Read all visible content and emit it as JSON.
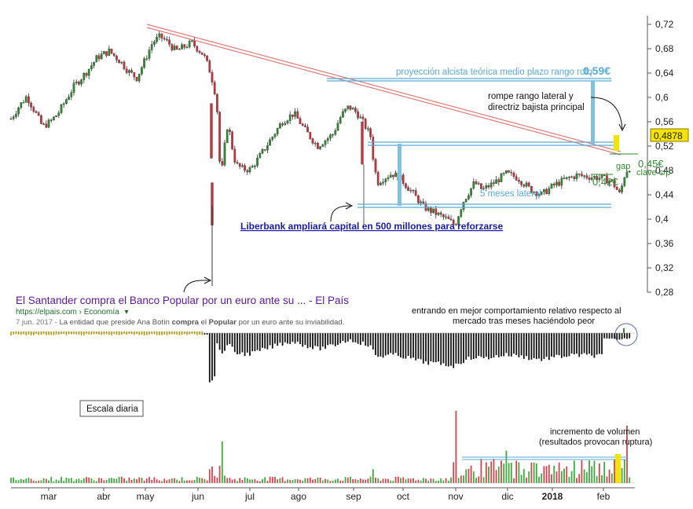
{
  "chart_data": {
    "type": "candlestick",
    "title": "",
    "price_axis": {
      "ylim": [
        0.28,
        0.72
      ],
      "ticks": [
        "0,72",
        "0,68",
        "0,64",
        "0,6",
        "0,56",
        "0,52",
        "0,48",
        "0,44",
        "0,4",
        "0,36",
        "0,32",
        "0,28"
      ],
      "last_price_label": "0,4878"
    },
    "months": [
      "mar",
      "abr",
      "may",
      "jun",
      "jul",
      "ago",
      "sep",
      "oct",
      "nov",
      "dic",
      "2018",
      "feb"
    ],
    "close_series": [
      [
        0,
        0.565
      ],
      [
        10,
        0.585
      ],
      [
        20,
        0.602
      ],
      [
        30,
        0.578
      ],
      [
        40,
        0.552
      ],
      [
        50,
        0.56
      ],
      [
        60,
        0.574
      ],
      [
        70,
        0.596
      ],
      [
        80,
        0.618
      ],
      [
        95,
        0.64
      ],
      [
        110,
        0.666
      ],
      [
        125,
        0.676
      ],
      [
        140,
        0.658
      ],
      [
        150,
        0.642
      ],
      [
        160,
        0.632
      ],
      [
        170,
        0.66
      ],
      [
        180,
        0.69
      ],
      [
        190,
        0.7
      ],
      [
        200,
        0.69
      ],
      [
        210,
        0.676
      ],
      [
        220,
        0.683
      ],
      [
        230,
        0.69
      ],
      [
        245,
        0.67
      ],
      [
        252,
        0.648
      ],
      [
        258,
        0.62
      ],
      [
        262,
        0.59
      ],
      [
        265,
        0.5
      ],
      [
        268,
        0.475
      ],
      [
        272,
        0.52
      ],
      [
        276,
        0.56
      ],
      [
        280,
        0.528
      ],
      [
        286,
        0.49
      ],
      [
        295,
        0.482
      ],
      [
        305,
        0.482
      ],
      [
        315,
        0.5
      ],
      [
        330,
        0.53
      ],
      [
        345,
        0.56
      ],
      [
        360,
        0.574
      ],
      [
        375,
        0.545
      ],
      [
        390,
        0.52
      ],
      [
        410,
        0.54
      ],
      [
        420,
        0.57
      ],
      [
        430,
        0.585
      ],
      [
        440,
        0.575
      ],
      [
        450,
        0.555
      ],
      [
        458,
        0.535
      ],
      [
        461,
        0.5
      ],
      [
        466,
        0.46
      ],
      [
        475,
        0.468
      ],
      [
        485,
        0.475
      ],
      [
        495,
        0.468
      ],
      [
        510,
        0.445
      ],
      [
        525,
        0.42
      ],
      [
        540,
        0.41
      ],
      [
        555,
        0.4
      ],
      [
        565,
        0.39
      ],
      [
        575,
        0.428
      ],
      [
        590,
        0.46
      ],
      [
        600,
        0.448
      ],
      [
        615,
        0.46
      ],
      [
        630,
        0.475
      ],
      [
        645,
        0.468
      ],
      [
        660,
        0.45
      ],
      [
        675,
        0.44
      ],
      [
        690,
        0.455
      ],
      [
        705,
        0.465
      ],
      [
        720,
        0.472
      ],
      [
        735,
        0.47
      ],
      [
        750,
        0.468
      ],
      [
        765,
        0.462
      ],
      [
        775,
        0.44
      ],
      [
        782,
        0.478
      ],
      [
        790,
        0.488
      ]
    ],
    "relative_strength": {
      "pre_event_band": "flat",
      "note": "bars below zero after jun"
    },
    "volume_spikes": [
      [
        268,
        0.45
      ],
      [
        462,
        0.15
      ],
      [
        565,
        0.78
      ],
      [
        632,
        0.35
      ],
      [
        785,
        0.62
      ]
    ],
    "annotations": {
      "projection": "proyección alcista teórica medio plazo rango roto",
      "projection_value": "0,59€",
      "breakout_note_l1": "rompe rango lateral y",
      "breakout_note_l2": "directriz bajista principal",
      "gap": "gap",
      "key_level": "0,45€",
      "key_level_note": "clave c/p",
      "low_level": "0,42€",
      "lateral_range": "5 meses lateral",
      "news_link": "Liberbank ampliará capital en 500 millones para reforzarse",
      "relative_note_l1": "entrando en mejor comportamiento relativo respecto al",
      "relative_note_l2": "mercado tras meses haciéndolo peor",
      "scale_label": "Escala diaria",
      "volume_note_l1": "incremento de volumen",
      "volume_note_l2": "(resultados provocan ruptura)"
    },
    "search_result": {
      "title": "El Santander compra el Banco Popular por un euro ante su ... - El País",
      "url": "https://elpais.com › Economía",
      "snippet_date": "7 jun. 2017",
      "snippet_sep": " - ",
      "snippet_a": "La entidad que preside Ana Botín ",
      "snippet_b": "compra",
      "snippet_c": " el ",
      "snippet_d": "Popular",
      "snippet_e": " por un euro ante su inviabilidad."
    },
    "colors": {
      "up": "#2f8a2f",
      "down": "#c8333b",
      "trend": "#e07a7a",
      "range": "#5aaad6",
      "projection": "#5aaad6",
      "link": "#1a1aa8",
      "search_title": "#5b189b",
      "url": "#1e6b2e",
      "highlight": "#f2e300"
    }
  }
}
